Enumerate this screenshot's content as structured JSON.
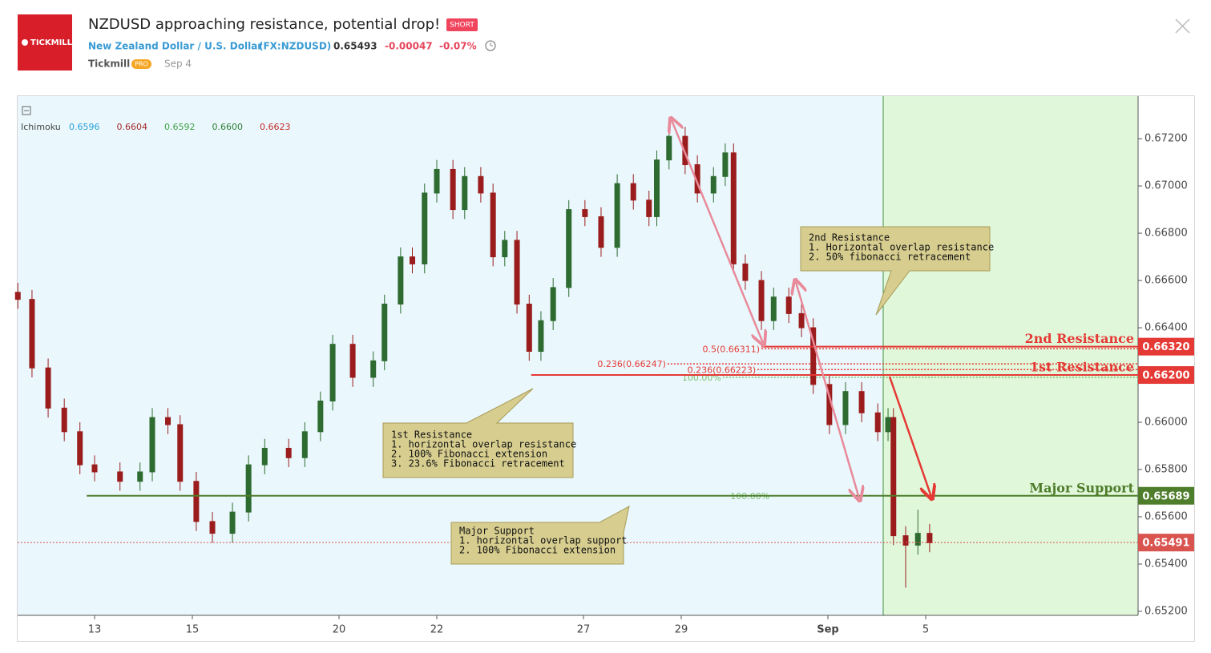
{
  "header": {
    "logo": "TICKMILL",
    "title": "NZDUSD approaching resistance, potential drop!",
    "badge": "SHORT",
    "symbol_name": "New Zealand Dollar / U.S. Dollar",
    "symbol_code": "(FX:NZDUSD)",
    "price": "0.65493",
    "change": "-0.00047",
    "change_percent": "-0.07%",
    "author": "Tickmill",
    "author_badge": "PRO",
    "date": "Sep 4"
  },
  "chart_data": {
    "type": "candlestick",
    "indicator": {
      "name": "Ichimoku",
      "values": [
        "0.6596",
        "0.6604",
        "0.6592",
        "0.6600",
        "0.6623"
      ],
      "colors": [
        "#2a9fd6",
        "#a52a2a",
        "#43a047",
        "#2e7d32",
        "#c62828"
      ]
    },
    "x": [
      -1.57,
      -1.28,
      -0.95,
      -0.62,
      -0.3,
      0,
      0.52,
      0.93,
      1.18,
      1.5,
      1.75,
      2.08,
      2.41,
      2.82,
      3.15,
      3.48,
      3.97,
      4.3,
      4.62,
      4.87,
      5.28,
      5.7,
      5.93,
      6.26,
      6.5,
      6.75,
      7,
      7.33,
      7.57,
      7.9,
      8.15,
      8.39,
      8.64,
      8.89,
      9.13,
      9.38,
      9.7,
      10.03,
      10.36,
      10.69,
      11.02,
      11.34,
      11.5,
      11.75,
      12.08,
      12.33,
      12.66,
      12.9,
      13.07,
      13.31,
      13.64,
      13.89,
      14.2,
      14.46,
      14.7,
      15.03,
      15.36,
      15.69,
      16.02,
      16.23,
      16.34,
      16.59,
      16.84,
      17.08
    ],
    "open": [
      0.6655,
      0.6652,
      0.6623,
      0.6606,
      0.6596,
      0.6582,
      0.6579,
      0.6575,
      0.6579,
      0.6602,
      0.6599,
      0.6575,
      0.6558,
      0.6553,
      0.6562,
      0.6582,
      0.6589,
      0.6585,
      0.6596,
      0.6609,
      0.6633,
      0.6619,
      0.6626,
      0.665,
      0.667,
      0.6667,
      0.6697,
      0.6707,
      0.669,
      0.6704,
      0.6697,
      0.667,
      0.6677,
      0.665,
      0.663,
      0.6643,
      0.6657,
      0.669,
      0.6687,
      0.6674,
      0.6701,
      0.6694,
      0.6687,
      0.6711,
      0.6721,
      0.6709,
      0.6697,
      0.6704,
      0.6714,
      0.6667,
      0.666,
      0.6643,
      0.6653,
      0.6646,
      0.664,
      0.6616,
      0.6599,
      0.6613,
      0.6604,
      0.6596,
      0.6602,
      0.6552,
      0.6548,
      0.6553
    ],
    "high": [
      0.6659,
      0.6656,
      0.6627,
      0.661,
      0.66,
      0.6586,
      0.6583,
      0.6583,
      0.6606,
      0.6606,
      0.6603,
      0.6579,
      0.6562,
      0.6566,
      0.6586,
      0.6593,
      0.6593,
      0.66,
      0.6613,
      0.6637,
      0.6637,
      0.663,
      0.6654,
      0.6674,
      0.6674,
      0.6701,
      0.6711,
      0.6711,
      0.6708,
      0.6708,
      0.6701,
      0.6681,
      0.6681,
      0.6654,
      0.6647,
      0.6661,
      0.6694,
      0.6694,
      0.6691,
      0.6705,
      0.6705,
      0.6698,
      0.6715,
      0.6727,
      0.6725,
      0.6713,
      0.6708,
      0.6718,
      0.6718,
      0.6671,
      0.6664,
      0.6657,
      0.6657,
      0.665,
      0.6644,
      0.662,
      0.6617,
      0.6617,
      0.6608,
      0.6606,
      0.6606,
      0.6556,
      0.6563,
      0.6557
    ],
    "low": [
      0.6648,
      0.6619,
      0.6602,
      0.6592,
      0.6578,
      0.6575,
      0.6571,
      0.6571,
      0.6575,
      0.6595,
      0.6571,
      0.6554,
      0.6549,
      0.6549,
      0.6558,
      0.6578,
      0.6581,
      0.6581,
      0.6592,
      0.6605,
      0.6615,
      0.6615,
      0.6622,
      0.6646,
      0.6663,
      0.6663,
      0.6693,
      0.6686,
      0.6686,
      0.6693,
      0.6666,
      0.6666,
      0.6646,
      0.6626,
      0.6626,
      0.6639,
      0.6653,
      0.6683,
      0.667,
      0.667,
      0.669,
      0.6683,
      0.6683,
      0.6707,
      0.6705,
      0.6693,
      0.6693,
      0.67,
      0.6663,
      0.6656,
      0.6639,
      0.6639,
      0.6642,
      0.6636,
      0.6612,
      0.6595,
      0.6595,
      0.66,
      0.6592,
      0.6592,
      0.6548,
      0.653,
      0.6544,
      0.6545
    ],
    "close": [
      0.6652,
      0.6623,
      0.6606,
      0.6596,
      0.6582,
      0.6579,
      0.6575,
      0.6579,
      0.6602,
      0.6599,
      0.6575,
      0.6558,
      0.6553,
      0.6562,
      0.6582,
      0.6589,
      0.6585,
      0.6596,
      0.6609,
      0.6633,
      0.6619,
      0.6626,
      0.665,
      0.667,
      0.6667,
      0.6697,
      0.6707,
      0.669,
      0.6704,
      0.6697,
      0.667,
      0.6677,
      0.665,
      0.663,
      0.6643,
      0.6657,
      0.669,
      0.6687,
      0.6674,
      0.6701,
      0.6694,
      0.6687,
      0.6711,
      0.6721,
      0.6709,
      0.6697,
      0.6704,
      0.6714,
      0.6667,
      0.666,
      0.6643,
      0.6653,
      0.6646,
      0.664,
      0.6616,
      0.6599,
      0.6613,
      0.6604,
      0.6596,
      0.6602,
      0.6552,
      0.6548,
      0.6553,
      0.6549
    ],
    "up_color": "#2e6b30",
    "down_color": "#9b1c1c",
    "xlim": [
      -1.574,
      21.344
    ],
    "ylim": [
      0.65183,
      0.6738
    ],
    "xticks": [
      {
        "value": 0,
        "label": "13"
      },
      {
        "value": 2,
        "label": "15"
      },
      {
        "value": 5,
        "label": "20"
      },
      {
        "value": 7,
        "label": "22"
      },
      {
        "value": 10,
        "label": "27"
      },
      {
        "value": 12,
        "label": "29"
      },
      {
        "value": 15,
        "label": "Sep"
      },
      {
        "value": 17,
        "label": "5"
      }
    ],
    "yticks": [
      {
        "value": 0.652,
        "label": "0.65200"
      },
      {
        "value": 0.654,
        "label": "0.65400"
      },
      {
        "value": 0.656,
        "label": "0.65600"
      },
      {
        "value": 0.658,
        "label": "0.65800"
      },
      {
        "value": 0.66,
        "label": "0.66000"
      },
      {
        "value": 0.662,
        "label": "0.66200"
      },
      {
        "value": 0.664,
        "label": "0.66400"
      },
      {
        "value": 0.666,
        "label": "0.66600"
      },
      {
        "value": 0.668,
        "label": "0.66800"
      },
      {
        "value": 0.67,
        "label": "0.67000"
      },
      {
        "value": 0.672,
        "label": "0.67200"
      }
    ],
    "grid": false,
    "levels": [
      {
        "name": "2nd Resistance",
        "value": 0.6632,
        "value_label": "0.66320",
        "color": "#e53935",
        "from": 13.64,
        "style": "solid"
      },
      {
        "name": "1st Resistance",
        "value": 0.662,
        "value_label": "0.66200",
        "color": "#e53935",
        "from": 8.93,
        "style": "solid"
      },
      {
        "name": "Major Support",
        "value": 0.65689,
        "value_label": "0.65689",
        "color": "#4e7d2b",
        "from": -0.16,
        "style": "solid"
      },
      {
        "value": 0.65491,
        "value_label": "0.65491",
        "color": "#d9534f",
        "style": "dotted"
      }
    ],
    "fib_levels": [
      {
        "label": "0.5(0.66311)",
        "value": 0.66311,
        "from": 13.64,
        "color": "#e53935"
      },
      {
        "label": "0.236(0.66247)",
        "value": 0.66247,
        "from": 11.72,
        "color": "#e53935"
      },
      {
        "label": "0.236(0.66223)",
        "value": 0.66223,
        "from": 13.56,
        "color": "#e53935"
      },
      {
        "label": "100.00%",
        "value": 0.6619,
        "from": 12.85,
        "color": "#7cbf6e"
      },
      {
        "label": "100.00%",
        "value": 0.65689,
        "from": 13.84,
        "color": "#7cbf6e"
      }
    ],
    "annotations": [
      {
        "title": "2nd Resistance",
        "lines": [
          "1. Horizontal overlap resistance",
          "2. 50% fibonacci retracement"
        ]
      },
      {
        "title": "1st Resistance",
        "lines": [
          "1. horizontal overlap resistance",
          "2. 100% Fibonacci extension",
          "3. 23.6% Fibonacci retracement"
        ]
      },
      {
        "title": "Major Support",
        "lines": [
          "1. horizontal overlap support",
          "2. 100% Fibonacci extension"
        ]
      }
    ]
  }
}
